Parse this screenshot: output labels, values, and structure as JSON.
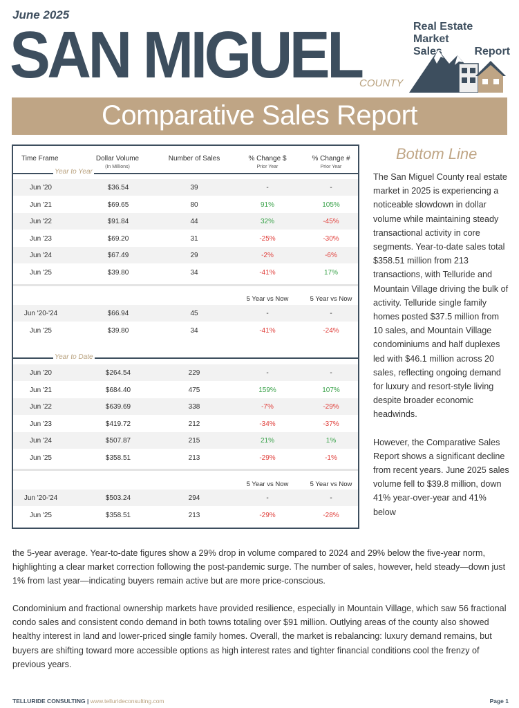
{
  "header": {
    "date": "June 2025",
    "title": "SAN MIGUEL",
    "county": "COUNTY",
    "brand_line1": "Real Estate Market",
    "brand_line2a": "Sales",
    "brand_line2b": "Report",
    "banner": "Comparative Sales Report"
  },
  "table": {
    "headers": {
      "time_frame": "Time Frame",
      "dollar_volume": "Dollar Volume",
      "dollar_volume_sub": "(In Millions)",
      "num_sales": "Number of Sales",
      "pct_dollar": "% Change $",
      "pct_dollar_sub": "Prior Year",
      "pct_num": "% Change #",
      "pct_num_sub": "Prior Year"
    },
    "section1_label": "Year to Year",
    "section2_label": "Year to Date",
    "vs_label_dollar": "5 Year vs Now",
    "vs_label_num": "5 Year vs Now",
    "yty_rows": [
      [
        "Jun '20",
        "$36.54",
        "39",
        "-",
        "-"
      ],
      [
        "Jun '21",
        "$69.65",
        "80",
        "91%",
        "105%"
      ],
      [
        "Jun '22",
        "$91.84",
        "44",
        "32%",
        "-45%"
      ],
      [
        "Jun '23",
        "$69.20",
        "31",
        "-25%",
        "-30%"
      ],
      [
        "Jun '24",
        "$67.49",
        "29",
        "-2%",
        "-6%"
      ],
      [
        "Jun '25",
        "$39.80",
        "34",
        "-41%",
        "17%"
      ]
    ],
    "yty_avg_rows": [
      [
        "Jun '20-'24",
        "$66.94",
        "45",
        "-",
        "-"
      ],
      [
        "Jun '25",
        "$39.80",
        "34",
        "-41%",
        "-24%"
      ]
    ],
    "ytd_rows": [
      [
        "Jun '20",
        "$264.54",
        "229",
        "-",
        "-"
      ],
      [
        "Jun '21",
        "$684.40",
        "475",
        "159%",
        "107%"
      ],
      [
        "Jun '22",
        "$639.69",
        "338",
        "-7%",
        "-29%"
      ],
      [
        "Jun '23",
        "$419.72",
        "212",
        "-34%",
        "-37%"
      ],
      [
        "Jun '24",
        "$507.87",
        "215",
        "21%",
        "1%"
      ],
      [
        "Jun '25",
        "$358.51",
        "213",
        "-29%",
        "-1%"
      ]
    ],
    "ytd_avg_rows": [
      [
        "Jun '20-'24",
        "$503.24",
        "294",
        "-",
        "-"
      ],
      [
        "Jun '25",
        "$358.51",
        "213",
        "-29%",
        "-28%"
      ]
    ]
  },
  "bottom_line": {
    "title": "Bottom Line",
    "para1": "The San Miguel County real estate market in 2025 is experiencing a noticeable slowdown in dollar volume while maintaining steady transactional activity in core segments. Year-to-date sales total $358.51 million from 213 transactions, with Telluride and Mountain Village driving the bulk of activity. Telluride single family homes posted $37.5 million from 10 sales, and Mountain Village condominiums and half duplexes led with $46.1 million across 20 sales, reflecting ongoing demand for luxury and resort-style living despite broader economic headwinds.",
    "para2_start": "However, the Comparative Sales Report shows a significant decline from recent years. June 2025 sales volume fell to $39.8 million, down 41% year-over-year and 41% below",
    "para2_cont": "the 5-year average. Year-to-date figures show a 29% drop in volume compared to 2024 and 29% below the five-year norm, highlighting a clear market correction following the post-pandemic surge. The number of sales, however, held steady—down just 1% from last year—indicating buyers remain active but are more price-conscious.",
    "para3": "Condominium and fractional ownership markets have provided resilience, especially in Mountain Village, which saw 56 fractional condo sales and consistent condo demand in both towns totaling over $91 million. Outlying areas of the county also showed healthy interest in land and lower-priced single family homes. Overall, the market is rebalancing: luxury demand remains, but buyers are shifting toward more accessible options as high interest rates and tighter financial conditions cool the frenzy of previous years."
  },
  "footer": {
    "company": "TELLURIDE CONSULTING",
    "separator": " | ",
    "url": "www.tellurideconsulting.com",
    "page": "Page 1"
  },
  "colors": {
    "navy": "#3d4e5e",
    "tan": "#bfa585",
    "positive": "#3aa24a",
    "negative": "#e0403c"
  }
}
